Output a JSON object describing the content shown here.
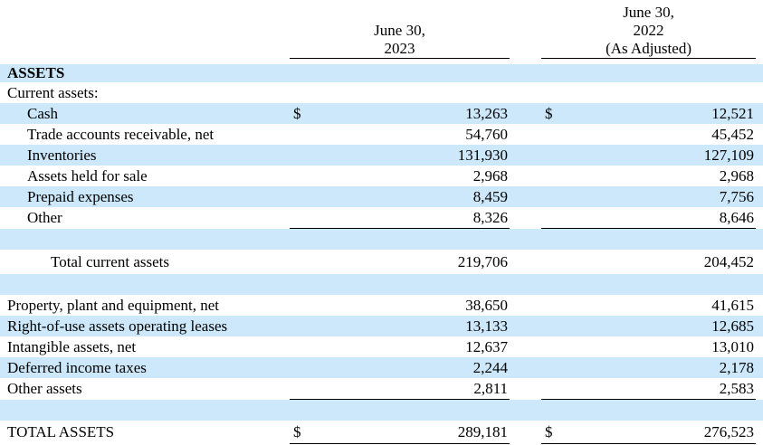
{
  "document": {
    "currency_symbol": "$",
    "header": {
      "col1": {
        "lines": [
          "June 30,",
          "2023"
        ]
      },
      "col2": {
        "lines": [
          "June 30,",
          "2022",
          "(As Adjusted)"
        ]
      }
    },
    "rows": [
      {
        "type": "section",
        "label": "ASSETS",
        "indent": 0,
        "bold": true,
        "highlight": true
      },
      {
        "type": "item",
        "label": "Current assets:",
        "indent": 0
      },
      {
        "type": "item",
        "label": "Cash",
        "indent": 1,
        "highlight": true,
        "dollar": true,
        "v1": "13,263",
        "v2": "12,521"
      },
      {
        "type": "item",
        "label": "Trade accounts receivable, net",
        "indent": 1,
        "v1": "54,760",
        "v2": "45,452"
      },
      {
        "type": "item",
        "label": "Inventories",
        "indent": 1,
        "highlight": true,
        "v1": "131,930",
        "v2": "127,109"
      },
      {
        "type": "item",
        "label": "Assets held for sale",
        "indent": 1,
        "v1": "2,968",
        "v2": "2,968"
      },
      {
        "type": "item",
        "label": "Prepaid expenses",
        "indent": 1,
        "highlight": true,
        "v1": "8,459",
        "v2": "7,756"
      },
      {
        "type": "item",
        "label": "Other",
        "indent": 1,
        "v1": "8,326",
        "v2": "8,646",
        "rule": true
      },
      {
        "type": "spacer",
        "highlight": true
      },
      {
        "type": "subtotal",
        "label": "Total current assets",
        "indent": 2,
        "v1": "219,706",
        "v2": "204,452"
      },
      {
        "type": "spacer",
        "highlight": true
      },
      {
        "type": "item",
        "label": "Property, plant and equipment, net",
        "indent": 0,
        "v1": "38,650",
        "v2": "41,615"
      },
      {
        "type": "item",
        "label": "Right-of-use assets operating leases",
        "indent": 0,
        "highlight": true,
        "v1": "13,133",
        "v2": "12,685"
      },
      {
        "type": "item",
        "label": "Intangible assets, net",
        "indent": 0,
        "v1": "12,637",
        "v2": "13,010"
      },
      {
        "type": "item",
        "label": "Deferred income taxes",
        "indent": 0,
        "highlight": true,
        "v1": "2,244",
        "v2": "2,178"
      },
      {
        "type": "item",
        "label": "Other assets",
        "indent": 0,
        "v1": "2,811",
        "v2": "2,583",
        "rule": true
      },
      {
        "type": "spacer",
        "highlight": true
      },
      {
        "type": "total",
        "label": "TOTAL ASSETS",
        "indent": 0,
        "dollar": true,
        "v1": "289,181",
        "v2": "276,523",
        "rule": true
      }
    ]
  },
  "colors": {
    "highlight": "#cce8fa",
    "rule": "#000000",
    "text": "#000000",
    "background": "#ffffff"
  }
}
